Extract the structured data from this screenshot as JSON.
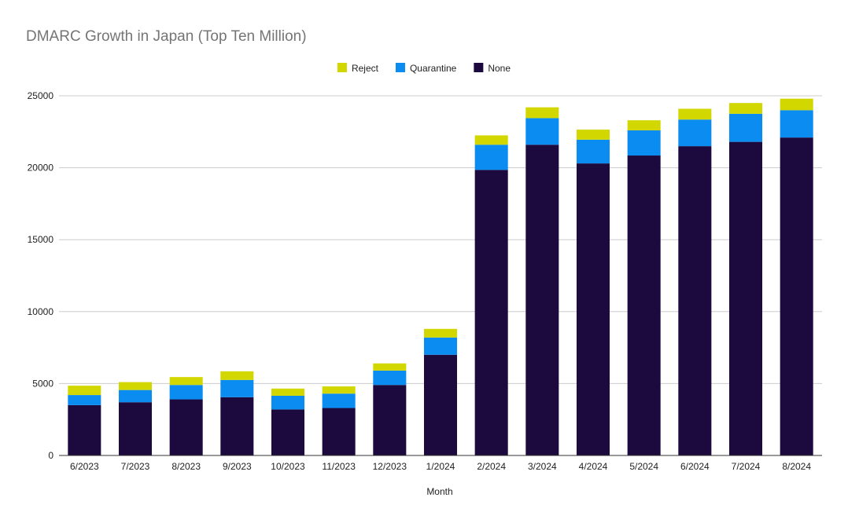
{
  "chart_data": {
    "type": "bar",
    "stacked": true,
    "title": "DMARC Growth in Japan (Top Ten Million)",
    "xlabel": "Month",
    "ylabel": "",
    "ylim": [
      0,
      25000
    ],
    "yticks": [
      0,
      5000,
      10000,
      15000,
      20000,
      25000
    ],
    "ytick_labels": [
      "0",
      "5000",
      "10000",
      "15000",
      "20000",
      "25000"
    ],
    "grid": true,
    "legend_position": "top-center",
    "categories": [
      "6/2023",
      "7/2023",
      "8/2023",
      "9/2023",
      "10/2023",
      "11/2023",
      "12/2023",
      "1/2024",
      "2/2024",
      "3/2024",
      "4/2024",
      "5/2024",
      "6/2024",
      "7/2024",
      "8/2024"
    ],
    "legend_order": [
      "Reject",
      "Quarantine",
      "None"
    ],
    "series": [
      {
        "name": "None",
        "color": "#1c0a3e",
        "values": [
          3500,
          3700,
          3900,
          4050,
          3200,
          3300,
          4900,
          7000,
          19850,
          21600,
          20300,
          20850,
          21500,
          21800,
          22100
        ]
      },
      {
        "name": "Quarantine",
        "color": "#0b8cf1",
        "values": [
          700,
          850,
          1000,
          1200,
          950,
          1000,
          1000,
          1200,
          1750,
          1850,
          1650,
          1750,
          1850,
          1950,
          1900
        ]
      },
      {
        "name": "Reject",
        "color": "#d3d700",
        "values": [
          650,
          550,
          550,
          600,
          500,
          500,
          500,
          600,
          650,
          750,
          700,
          700,
          750,
          750,
          800
        ]
      }
    ]
  }
}
